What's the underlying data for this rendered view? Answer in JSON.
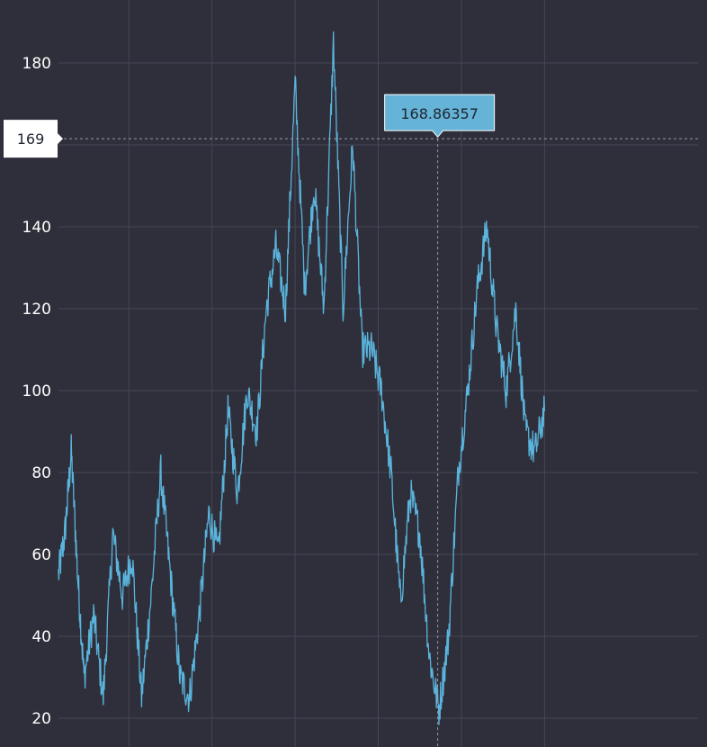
{
  "chart_data": {
    "type": "line",
    "title": "",
    "xlabel": "",
    "ylabel": "",
    "ylim": [
      17,
      193
    ],
    "xlim": [
      0,
      1000
    ],
    "y_ticks": [
      "20",
      "40",
      "60",
      "80",
      "100",
      "120",
      "140",
      "160",
      "180"
    ],
    "y_tick_values": [
      20,
      40,
      60,
      80,
      100,
      120,
      140,
      160,
      180
    ],
    "x_gridlines": [
      110,
      240,
      370,
      500,
      630,
      760
    ],
    "grid": true,
    "legend": "none",
    "line_color": "#5ab4dc",
    "background_color": "#2f2f3b",
    "crosshair": {
      "y_value": 161.5,
      "y_label": "169",
      "x_value": 593
    },
    "tooltip": {
      "value_text": "168.86357",
      "y_value": 161.5
    },
    "series": [
      {
        "x": [
          0,
          10,
          20,
          30,
          40,
          55,
          70,
          85,
          100,
          115,
          130,
          145,
          160,
          175,
          190,
          205,
          220,
          235,
          250,
          265,
          280,
          295,
          310,
          325,
          340,
          355,
          370,
          385,
          400,
          415,
          430,
          445,
          460,
          475,
          490,
          505,
          520,
          535,
          550,
          565,
          580,
          595,
          610,
          625,
          640,
          655,
          670,
          685,
          700,
          715,
          730,
          745,
          760
        ],
        "values": [
          55,
          65,
          85,
          55,
          30,
          45,
          25,
          65,
          50,
          60,
          25,
          50,
          80,
          55,
          30,
          25,
          45,
          70,
          60,
          95,
          75,
          100,
          90,
          120,
          135,
          120,
          175,
          125,
          150,
          120,
          185,
          120,
          160,
          110,
          110,
          100,
          80,
          48,
          75,
          65,
          35,
          22,
          40,
          80,
          100,
          125,
          140,
          115,
          100,
          120,
          90,
          85,
          95
        ]
      }
    ]
  }
}
